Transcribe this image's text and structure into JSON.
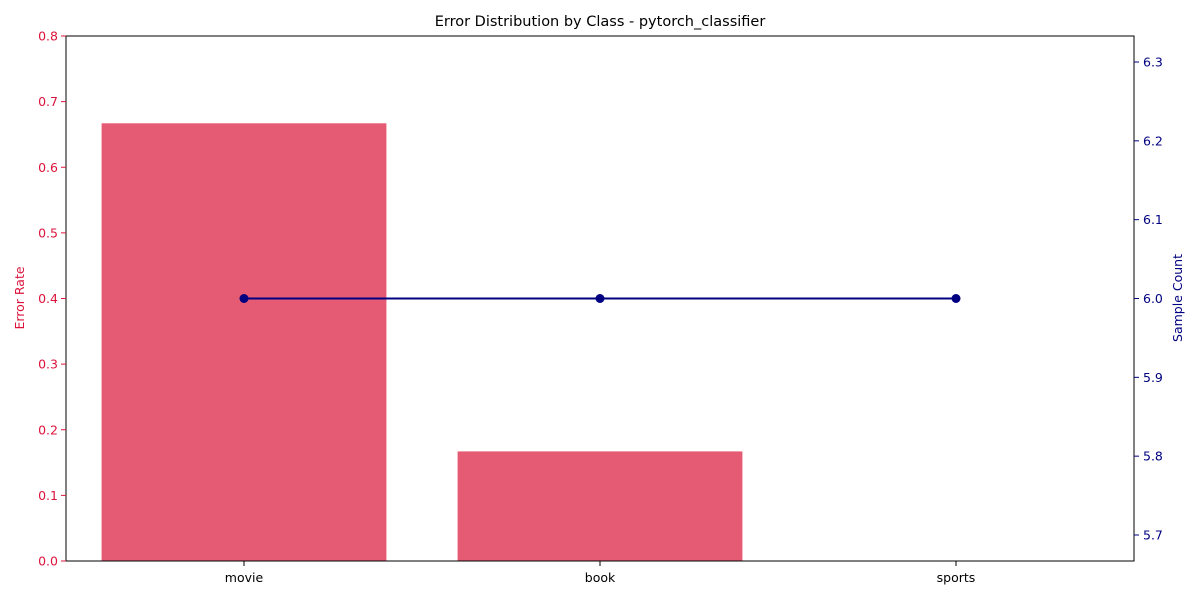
{
  "chart_data": {
    "type": "bar",
    "title": "Error Distribution by Class - pytorch_classifier",
    "categories": [
      "movie",
      "book",
      "sports"
    ],
    "series": [
      {
        "name": "Error Rate",
        "type": "bar",
        "axis": "left",
        "values": [
          0.667,
          0.167,
          0.0
        ]
      },
      {
        "name": "Sample Count",
        "type": "line",
        "axis": "right",
        "values": [
          6,
          6,
          6
        ]
      }
    ],
    "ylabel": "Error Rate",
    "ylabel_right": "Sample Count",
    "xlabel": "",
    "ylim": [
      0,
      0.8
    ],
    "ylim_right": [
      5.667,
      6.333
    ],
    "yticks": [
      0.0,
      0.1,
      0.2,
      0.3,
      0.4,
      0.5,
      0.6,
      0.7,
      0.8
    ],
    "yticks_right": [
      5.7,
      5.8,
      5.9,
      6.0,
      6.1,
      6.2,
      6.3
    ],
    "grid": false,
    "colors": {
      "bar": "#e55b73",
      "left_axis": "#dc143c",
      "line": "#000080",
      "right_axis": "#000080",
      "frame": "#000000"
    }
  }
}
